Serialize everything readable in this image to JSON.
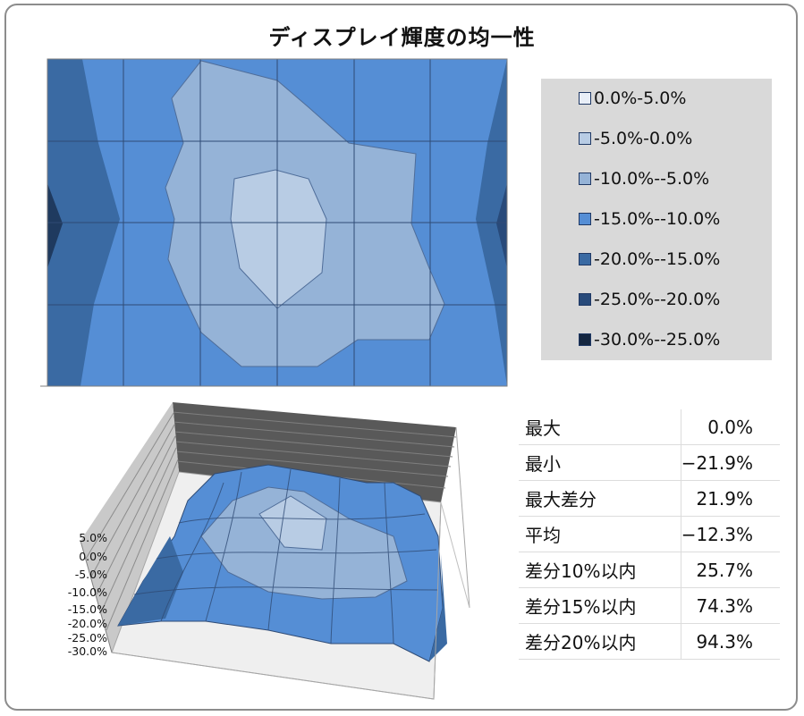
{
  "title": "ディスプレイ輝度の均一性",
  "legend": [
    {
      "label": "0.0%-5.0%",
      "color": "#e8eef7"
    },
    {
      "label": "-5.0%-0.0%",
      "color": "#b8cce4"
    },
    {
      "label": "-10.0%--5.0%",
      "color": "#95b3d7"
    },
    {
      "label": "-15.0%--10.0%",
      "color": "#558ed5"
    },
    {
      "label": "-20.0%--15.0%",
      "color": "#3a6aa3"
    },
    {
      "label": "-25.0%--20.0%",
      "color": "#284a7a"
    },
    {
      "label": "-30.0%--25.0%",
      "color": "#142640"
    }
  ],
  "stats": [
    {
      "label": "最大",
      "value": "0.0%"
    },
    {
      "label": "最小",
      "value": "−21.9%"
    },
    {
      "label": "最大差分",
      "value": "21.9%"
    },
    {
      "label": "平均",
      "value": "−12.3%"
    },
    {
      "label": "差分10%以内",
      "value": "25.7%"
    },
    {
      "label": "差分15%以内",
      "value": "74.3%"
    },
    {
      "label": "差分20%以内",
      "value": "94.3%"
    }
  ],
  "chart_data": [
    {
      "type": "heatmap",
      "subtype": "contour",
      "title": "",
      "grid": true,
      "legend_placement": "right",
      "series": [
        {
          "name": "0.0%-5.0%",
          "range": [
            0,
            5
          ]
        },
        {
          "name": "-5.0%-0.0%",
          "range": [
            -5,
            0
          ]
        },
        {
          "name": "-10.0%--5.0%",
          "range": [
            -10,
            -5
          ]
        },
        {
          "name": "-15.0%--10.0%",
          "range": [
            -15,
            -10
          ]
        },
        {
          "name": "-20.0%--15.0%",
          "range": [
            -20,
            -15
          ]
        },
        {
          "name": "-25.0%--20.0%",
          "range": [
            -25,
            -20
          ]
        },
        {
          "name": "-30.0%--25.0%",
          "range": [
            -30,
            -25
          ]
        }
      ]
    },
    {
      "type": "area",
      "subtype": "3d-surface",
      "zlim": [
        -30,
        5
      ],
      "z_ticks": [
        "5.0%",
        "0.0%",
        "-5.0%",
        "-10.0%",
        "-15.0%",
        "-20.0%",
        "-25.0%",
        "-30.0%"
      ]
    }
  ]
}
